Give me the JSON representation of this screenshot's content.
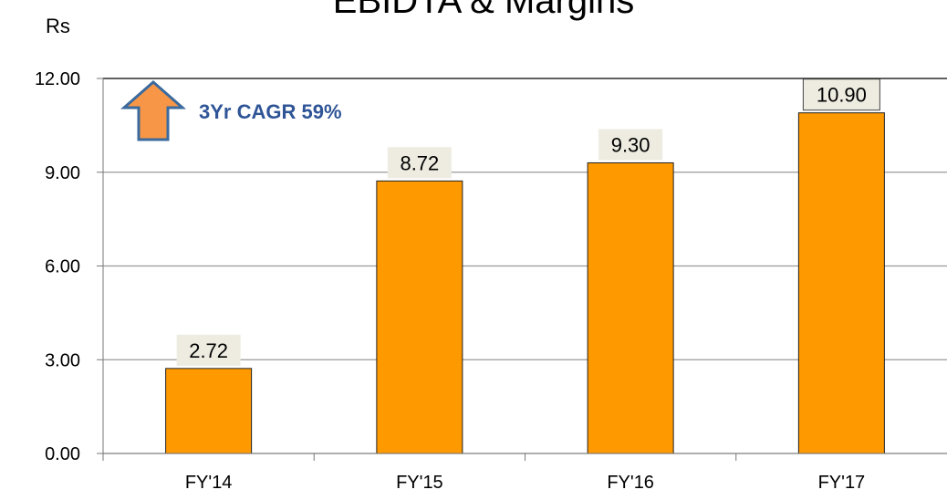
{
  "chart_data": {
    "type": "bar",
    "title": "EBIDTA & Margins",
    "y_label": "Rs",
    "categories": [
      "FY'14",
      "FY'15",
      "FY'16",
      "FY'17"
    ],
    "values": [
      2.72,
      8.72,
      9.3,
      10.9
    ],
    "value_labels": [
      "2.72",
      "8.72",
      "9.30",
      "10.90"
    ],
    "color": "#ff9900",
    "ylim": [
      0,
      12
    ],
    "yticks": [
      {
        "value": 0,
        "label": "0.00"
      },
      {
        "value": 3,
        "label": "3.00"
      },
      {
        "value": 6,
        "label": "6.00"
      },
      {
        "value": 9,
        "label": "9.00"
      },
      {
        "value": 12,
        "label": "12.00"
      }
    ],
    "grid": true,
    "annotation": "3Yr CAGR 59%"
  }
}
